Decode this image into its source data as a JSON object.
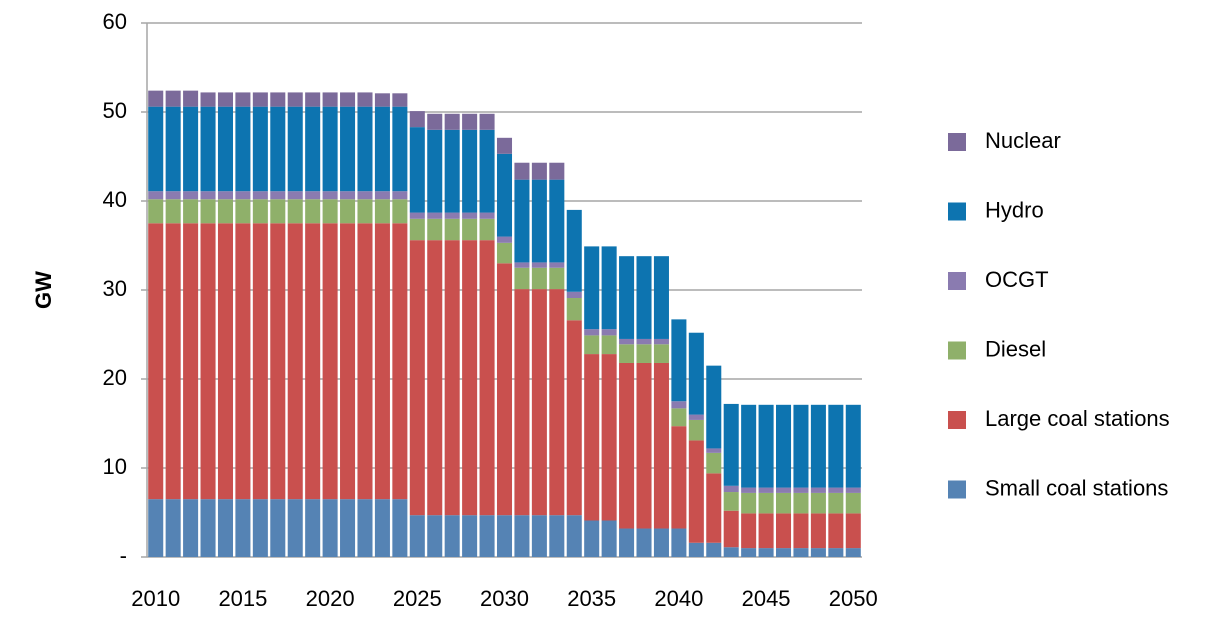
{
  "chart_data": {
    "type": "stacked_bar",
    "y_label": "GW",
    "categories": [
      "2010",
      null,
      null,
      null,
      null,
      "2015",
      null,
      null,
      null,
      null,
      "2020",
      null,
      null,
      null,
      null,
      "2025",
      null,
      null,
      null,
      null,
      "2030",
      null,
      null,
      null,
      null,
      "2035",
      null,
      null,
      null,
      null,
      "2040",
      null,
      null,
      null,
      null,
      "2045",
      null,
      null,
      null,
      null,
      "2050"
    ],
    "ylim": [
      0,
      60
    ],
    "yticks": [
      {
        "value": 0,
        "label": "-"
      },
      10,
      20,
      30,
      40,
      50,
      60
    ],
    "grid": true,
    "legend": "right",
    "series": [
      {
        "name": "Small coal stations",
        "color": "#5583b4",
        "values": [
          6.5,
          6.5,
          6.5,
          6.5,
          6.5,
          6.5,
          6.5,
          6.5,
          6.5,
          6.5,
          6.5,
          6.5,
          6.5,
          6.5,
          6.5,
          4.7,
          4.7,
          4.7,
          4.7,
          4.7,
          4.7,
          4.7,
          4.7,
          4.7,
          4.7,
          4.1,
          4.1,
          3.2,
          3.2,
          3.2,
          3.2,
          1.6,
          1.6,
          1.1,
          1.0,
          1.0,
          1.0,
          1.0,
          1.0,
          1.0,
          1.0
        ]
      },
      {
        "name": "Large coal stations",
        "color": "#c9504e",
        "values": [
          31.0,
          31.0,
          31.0,
          31.0,
          31.0,
          31.0,
          31.0,
          31.0,
          31.0,
          31.0,
          31.0,
          31.0,
          31.0,
          31.0,
          31.0,
          30.9,
          30.9,
          30.9,
          30.9,
          30.9,
          28.3,
          25.4,
          25.4,
          25.4,
          21.9,
          18.7,
          18.7,
          18.6,
          18.6,
          18.6,
          11.5,
          11.5,
          7.8,
          4.1,
          3.9,
          3.9,
          3.9,
          3.9,
          3.9,
          3.9,
          3.9
        ]
      },
      {
        "name": "Diesel",
        "color": "#8fb06a",
        "values": [
          2.7,
          2.7,
          2.7,
          2.7,
          2.7,
          2.7,
          2.7,
          2.7,
          2.7,
          2.7,
          2.7,
          2.7,
          2.7,
          2.7,
          2.7,
          2.4,
          2.4,
          2.4,
          2.4,
          2.4,
          2.3,
          2.4,
          2.4,
          2.4,
          2.5,
          2.1,
          2.1,
          2.1,
          2.1,
          2.1,
          2.0,
          2.3,
          2.3,
          2.1,
          2.3,
          2.3,
          2.3,
          2.3,
          2.3,
          2.3,
          2.3
        ]
      },
      {
        "name": "OCGT",
        "color": "#8a7bb0",
        "values": [
          0.9,
          0.9,
          0.9,
          0.9,
          0.9,
          0.9,
          0.9,
          0.9,
          0.9,
          0.9,
          0.9,
          0.9,
          0.9,
          0.9,
          0.9,
          0.7,
          0.7,
          0.7,
          0.7,
          0.7,
          0.7,
          0.6,
          0.6,
          0.6,
          0.7,
          0.7,
          0.7,
          0.6,
          0.6,
          0.6,
          0.8,
          0.6,
          0.5,
          0.7,
          0.6,
          0.6,
          0.6,
          0.6,
          0.6,
          0.6,
          0.6
        ]
      },
      {
        "name": "Hydro",
        "color": "#0d74b0",
        "values": [
          9.5,
          9.5,
          9.5,
          9.5,
          9.5,
          9.5,
          9.5,
          9.5,
          9.5,
          9.5,
          9.5,
          9.5,
          9.5,
          9.5,
          9.5,
          9.6,
          9.3,
          9.3,
          9.3,
          9.3,
          9.3,
          9.3,
          9.3,
          9.3,
          9.2,
          9.3,
          9.3,
          9.3,
          9.3,
          9.3,
          9.2,
          9.2,
          9.3,
          9.2,
          9.3,
          9.3,
          9.3,
          9.3,
          9.3,
          9.3,
          9.3
        ]
      },
      {
        "name": "Nuclear",
        "color": "#7b6a9a",
        "values": [
          1.8,
          1.8,
          1.8,
          1.6,
          1.6,
          1.6,
          1.6,
          1.6,
          1.6,
          1.6,
          1.6,
          1.6,
          1.6,
          1.5,
          1.5,
          1.8,
          1.8,
          1.8,
          1.8,
          1.8,
          1.8,
          1.9,
          1.9,
          1.9,
          0,
          0,
          0,
          0,
          0,
          0,
          0,
          0,
          0,
          0,
          0,
          0,
          0,
          0,
          0,
          0,
          0
        ]
      }
    ]
  }
}
